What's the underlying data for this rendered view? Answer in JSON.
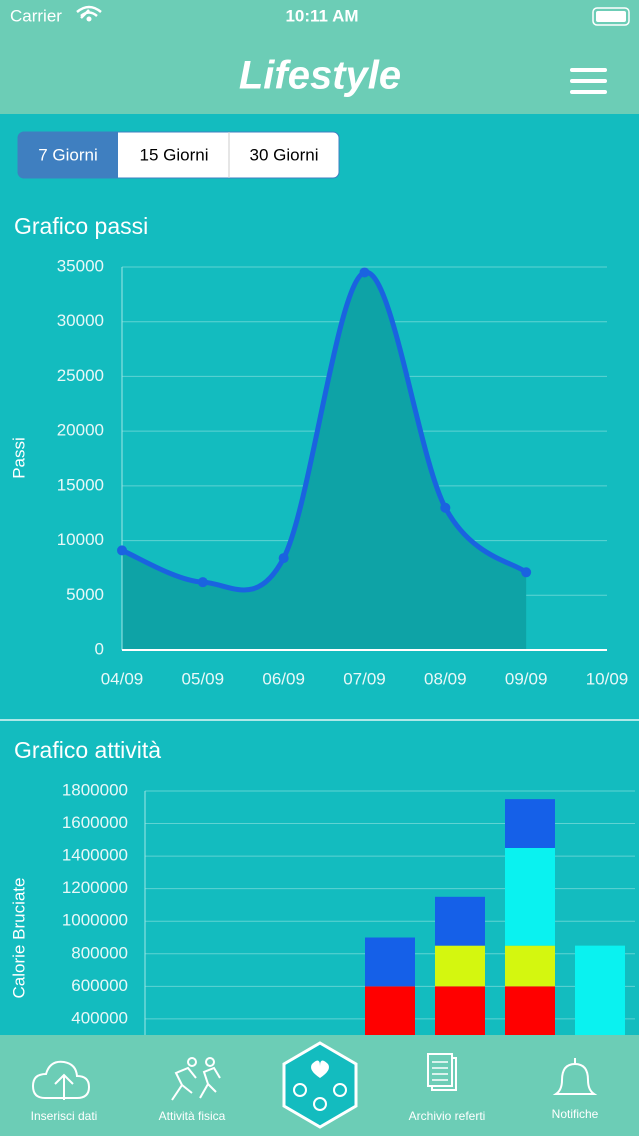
{
  "status_bar": {
    "carrier": "Carrier",
    "time": "10:11 AM"
  },
  "header": {
    "title": "Lifestyle"
  },
  "tabs": [
    "7 Giorni",
    "15 Giorni",
    "30 Giorni"
  ],
  "chart_data": [
    {
      "type": "line",
      "title": "Grafico passi",
      "y_label": "Passi",
      "categories": [
        "04/09",
        "05/09",
        "06/09",
        "07/09",
        "08/09",
        "09/09",
        "10/09"
      ],
      "values": [
        9100,
        6200,
        8400,
        34500,
        13000,
        7100,
        null
      ],
      "color": "#1a63e0",
      "fill": "#0ea3a6",
      "ylim": [
        0,
        35000
      ],
      "yticks": [
        0,
        5000,
        10000,
        15000,
        20000,
        25000,
        30000,
        35000
      ],
      "grid": true
    },
    {
      "type": "bar",
      "stacked": true,
      "title": "Grafico attività",
      "y_label": "Calorie Bruciate",
      "categories": [
        null,
        null,
        null,
        null,
        null,
        null,
        null
      ],
      "series": [
        {
          "color": "#ff0000",
          "values": [
            0,
            0,
            0,
            600000,
            600000,
            600000,
            0
          ]
        },
        {
          "color": "#d4f70f",
          "values": [
            0,
            0,
            0,
            0,
            250000,
            250000,
            0
          ]
        },
        {
          "color": "#0af2f0",
          "values": [
            0,
            0,
            0,
            0,
            0,
            600000,
            850000
          ]
        },
        {
          "color": "#1560e8",
          "values": [
            0,
            0,
            0,
            300000,
            300000,
            300000,
            0
          ]
        }
      ],
      "ylim": [
        0,
        1800000
      ],
      "yticks": [
        400000,
        600000,
        800000,
        1000000,
        1200000,
        1400000,
        1600000,
        1800000
      ],
      "grid": true
    }
  ],
  "tab_bar": {
    "items": [
      {
        "label": "Inserisci dati"
      },
      {
        "label": "Attività fisica"
      },
      {
        "label": "Archivio referti"
      },
      {
        "label": "Notifiche"
      }
    ]
  }
}
